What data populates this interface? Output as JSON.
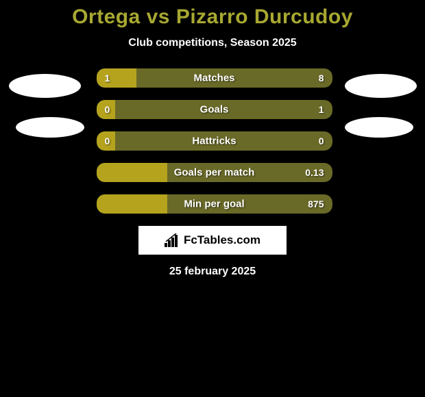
{
  "title": "Ortega vs Pizarro Durcudoy",
  "subtitle": "Club competitions, Season 2025",
  "date": "25 february 2025",
  "logo_text": "FcTables.com",
  "colors": {
    "background": "#000000",
    "title": "#a8a832",
    "text": "#ffffff",
    "bar_base": "#6a6a28",
    "bar_highlight": "#b5a31e",
    "avatar": "#ffffff"
  },
  "stats": [
    {
      "name": "Matches",
      "left_value": "1",
      "right_value": "8",
      "left_pct": 17,
      "right_pct": 83,
      "left_color": "#b5a31e",
      "right_color": "#6a6a28"
    },
    {
      "name": "Goals",
      "left_value": "0",
      "right_value": "1",
      "left_pct": 8,
      "right_pct": 92,
      "left_color": "#b5a31e",
      "right_color": "#6a6a28"
    },
    {
      "name": "Hattricks",
      "left_value": "0",
      "right_value": "0",
      "left_pct": 8,
      "right_pct": 92,
      "left_color": "#b5a31e",
      "right_color": "#6a6a28"
    },
    {
      "name": "Goals per match",
      "left_value": "",
      "right_value": "0.13",
      "left_pct": 30,
      "right_pct": 70,
      "left_color": "#b5a31e",
      "right_color": "#6a6a28"
    },
    {
      "name": "Min per goal",
      "left_value": "",
      "right_value": "875",
      "left_pct": 30,
      "right_pct": 70,
      "left_color": "#b5a31e",
      "right_color": "#6a6a28"
    }
  ]
}
